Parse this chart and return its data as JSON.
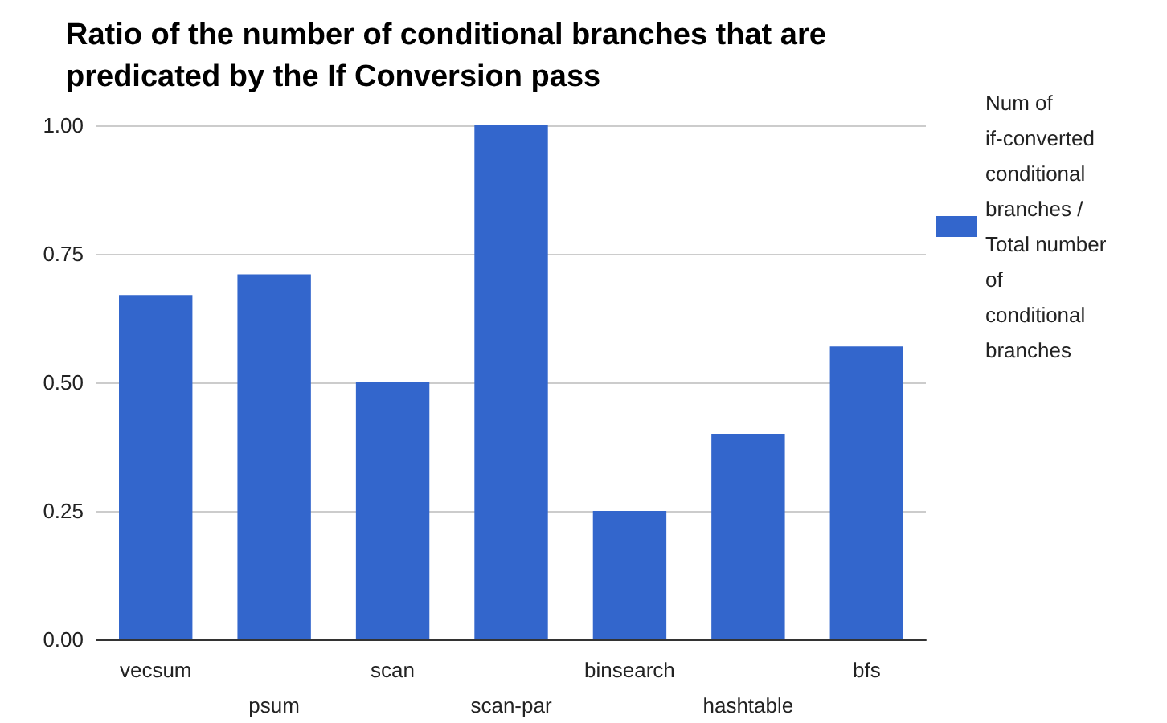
{
  "chart_data": {
    "type": "bar",
    "title": "Ratio of the number of conditional branches that are predicated by the If Conversion pass",
    "categories": [
      "vecsum",
      "psum",
      "scan",
      "scan-par",
      "binsearch",
      "hashtable",
      "bfs"
    ],
    "series": [
      {
        "name": "Num of if-converted conditional branches / Total number of conditional branches",
        "color": "#3366cc",
        "values": [
          0.67,
          0.71,
          0.5,
          1.0,
          0.25,
          0.4,
          0.57
        ]
      }
    ],
    "ylim": [
      0,
      1
    ],
    "yticks": [
      {
        "value": 0,
        "label": "0.00"
      },
      {
        "value": 0.25,
        "label": "0.25"
      },
      {
        "value": 0.5,
        "label": "0.50"
      },
      {
        "value": 0.75,
        "label": "0.75"
      },
      {
        "value": 1,
        "label": "1.00"
      }
    ],
    "grid": "y",
    "legend": "top right"
  }
}
